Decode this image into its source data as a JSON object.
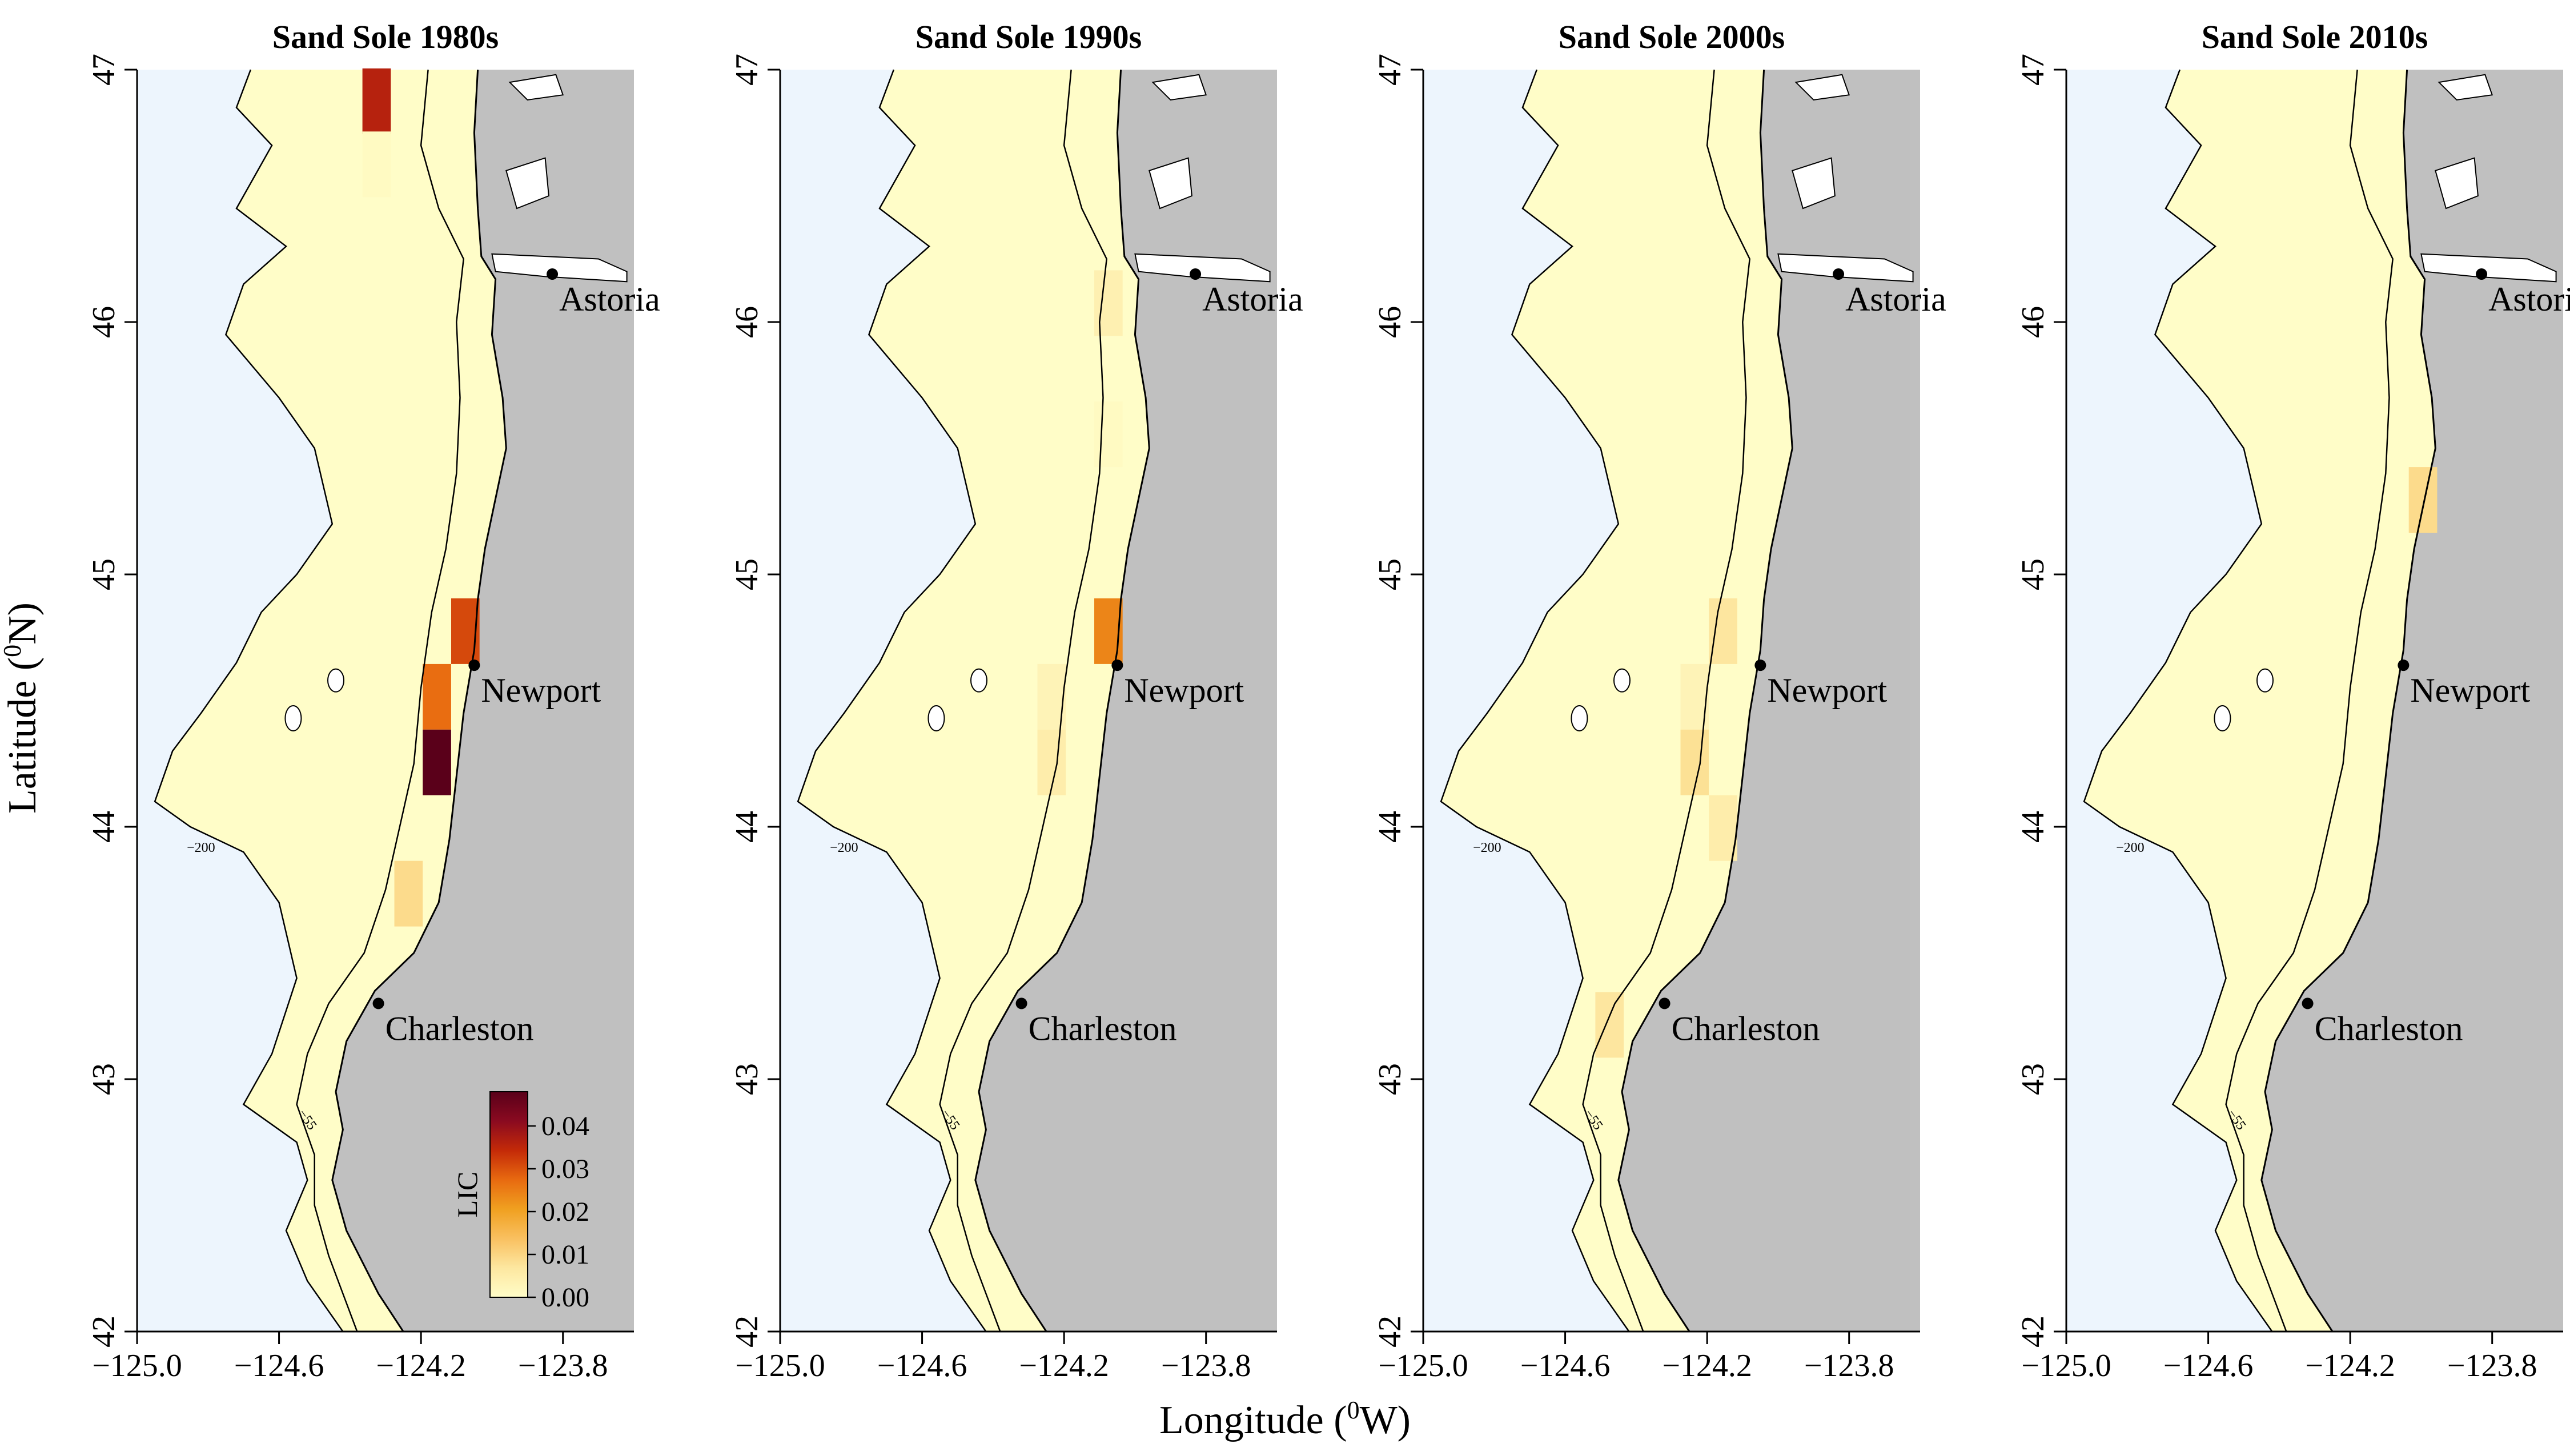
{
  "figure": {
    "xlabel": "Longitude (",
    "xlabel_sup": "0",
    "xlabel_end": "W)",
    "ylabel": "Latitude (",
    "ylabel_sup": "0",
    "ylabel_end": "N)"
  },
  "axes": {
    "x_ticks": [
      "−125.0",
      "−124.6",
      "−124.2",
      "−123.8"
    ],
    "x_values": [
      -125.0,
      -124.6,
      -124.2,
      -123.8
    ],
    "y_ticks": [
      "42",
      "43",
      "44",
      "45",
      "46",
      "47"
    ],
    "y_values": [
      42,
      43,
      44,
      45,
      46,
      47
    ],
    "xlim": [
      -125.0,
      -123.6
    ],
    "ylim": [
      42,
      47
    ]
  },
  "contours": {
    "shelf_label": "200",
    "inner_label": "55"
  },
  "cities": [
    {
      "name": "Astoria",
      "lon": -123.83,
      "lat": 46.19
    },
    {
      "name": "Newport",
      "lon": -124.05,
      "lat": 44.64
    },
    {
      "name": "Charleston",
      "lon": -124.32,
      "lat": 43.3
    }
  ],
  "colorbar": {
    "title": "LIC",
    "ticks": [
      "0.00",
      "0.01",
      "0.02",
      "0.03",
      "0.04"
    ],
    "tick_values": [
      0,
      0.01,
      0.02,
      0.03,
      0.04
    ],
    "max": 0.048,
    "colors": [
      "#fffdc8",
      "#fde7a0",
      "#f9c060",
      "#f0a020",
      "#e86a10",
      "#c42a08",
      "#8a0a20",
      "#5a001a"
    ]
  },
  "colors": {
    "ocean": "#edf5fd",
    "land": "#c0c0c0",
    "shelf": "#fffdc8"
  },
  "chart_data": [
    {
      "type": "heatmap",
      "title": "Sand Sole 1980s",
      "xlabel": "Longitude (0W)",
      "ylabel": "Latitude (0N)",
      "cells": [
        {
          "lon": -124.325,
          "lat": 46.875,
          "value": 0.036
        },
        {
          "lon": -124.325,
          "lat": 46.625,
          "value": 0.001
        },
        {
          "lon": -124.075,
          "lat": 44.775,
          "value": 0.031
        },
        {
          "lon": -124.155,
          "lat": 44.515,
          "value": 0.027
        },
        {
          "lon": -124.155,
          "lat": 44.255,
          "value": 0.048
        },
        {
          "lon": -124.235,
          "lat": 43.735,
          "value": 0.009
        }
      ]
    },
    {
      "type": "heatmap",
      "title": "Sand Sole 1990s",
      "xlabel": "Longitude (0W)",
      "ylabel": "Latitude (0N)",
      "cells": [
        {
          "lon": -124.075,
          "lat": 44.775,
          "value": 0.024
        },
        {
          "lon": -124.075,
          "lat": 46.075,
          "value": 0.004
        },
        {
          "lon": -124.075,
          "lat": 45.555,
          "value": 0.001
        },
        {
          "lon": -124.235,
          "lat": 44.515,
          "value": 0.003
        },
        {
          "lon": -124.235,
          "lat": 44.255,
          "value": 0.005
        }
      ]
    },
    {
      "type": "heatmap",
      "title": "Sand Sole 2000s",
      "xlabel": "Longitude (0W)",
      "ylabel": "Latitude (0N)",
      "cells": [
        {
          "lon": -124.155,
          "lat": 44.775,
          "value": 0.007
        },
        {
          "lon": -124.235,
          "lat": 44.515,
          "value": 0.003
        },
        {
          "lon": -124.235,
          "lat": 44.255,
          "value": 0.008
        },
        {
          "lon": -124.155,
          "lat": 43.995,
          "value": 0.005
        },
        {
          "lon": -124.475,
          "lat": 43.215,
          "value": 0.007
        }
      ]
    },
    {
      "type": "heatmap",
      "title": "Sand Sole 2010s",
      "xlabel": "Longitude (0W)",
      "ylabel": "Latitude (0N)",
      "cells": [
        {
          "lon": -123.995,
          "lat": 45.295,
          "value": 0.009
        }
      ]
    }
  ]
}
